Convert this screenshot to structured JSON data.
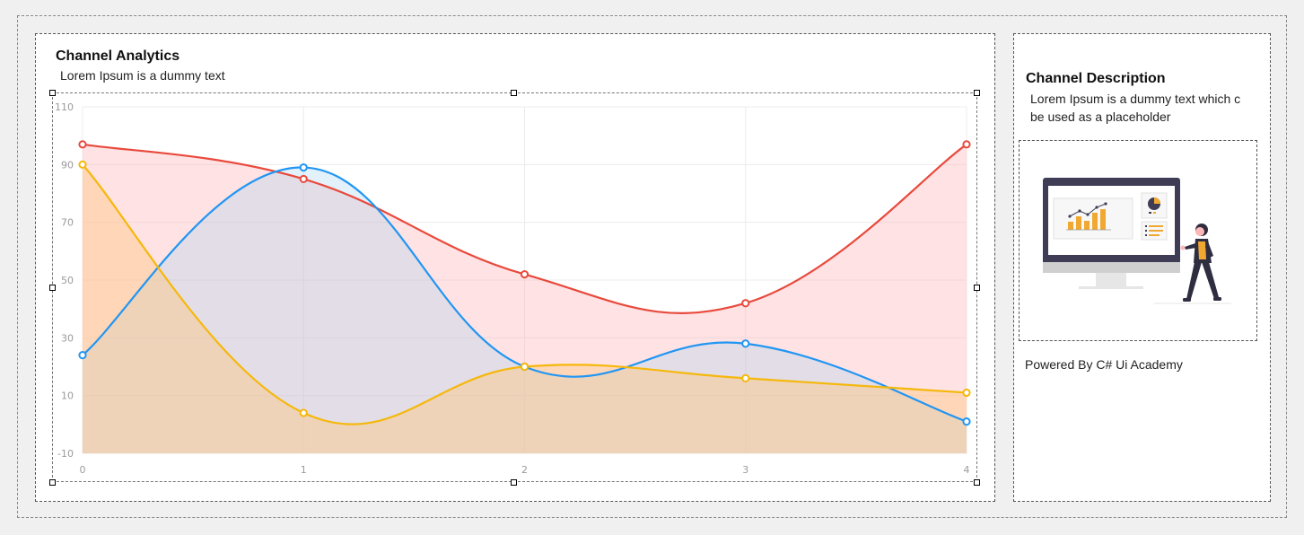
{
  "left_panel": {
    "title": "Channel Analytics",
    "subtitle": "Lorem Ipsum is a dummy text"
  },
  "right_panel": {
    "title": "Channel Description",
    "description_line1": "Lorem Ipsum is a dummy text which c",
    "description_line2": "be used as a placeholder",
    "illustration_icon": "person-presenting-dashboard-icon",
    "footer": "Powered By C# Ui Academy"
  },
  "chart_data": {
    "type": "area",
    "x": [
      0,
      1,
      2,
      3,
      4
    ],
    "xlim": [
      0,
      4
    ],
    "ylim": [
      -10,
      110
    ],
    "y_ticks": [
      110,
      90,
      70,
      50,
      30,
      10,
      -10
    ],
    "x_ticks": [
      0,
      1,
      2,
      3,
      4
    ],
    "grid": true,
    "series": [
      {
        "values": [
          97,
          85,
          52,
          42,
          97
        ],
        "color": "#e84a3d",
        "fill": "rgba(255,182,186,0.40)"
      },
      {
        "values": [
          24,
          89,
          20,
          28,
          1
        ],
        "color": "#2196f3",
        "fill": "rgba(160,210,240,0.30)"
      },
      {
        "values": [
          90,
          4,
          20,
          16,
          11
        ],
        "color": "#f5b80b",
        "fill": "rgba(255,200,130,0.45)"
      }
    ]
  }
}
